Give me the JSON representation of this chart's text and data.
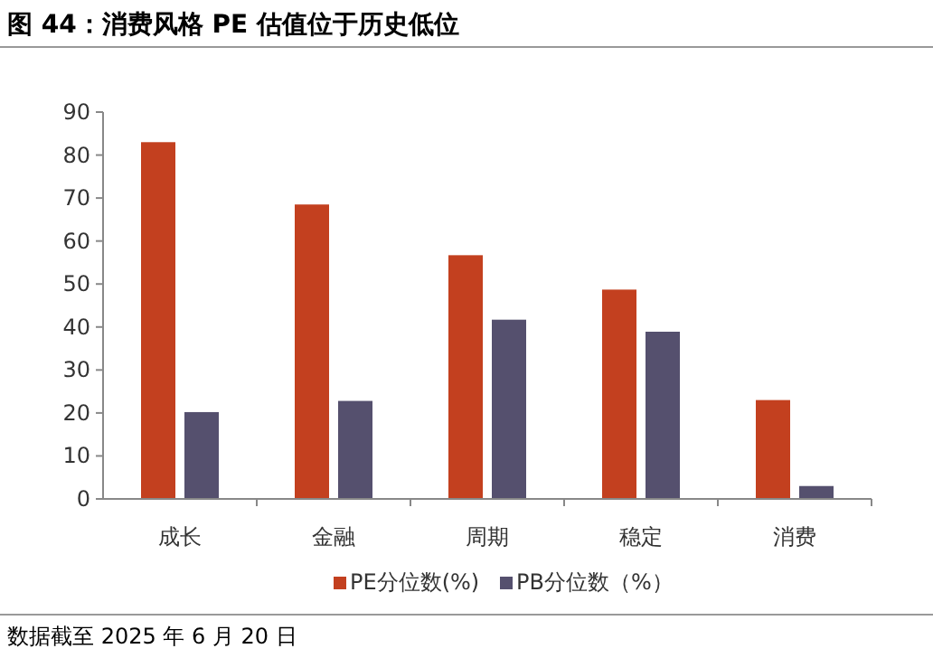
{
  "chart_data": {
    "type": "bar",
    "title": "图 44：消费风格 PE 估值位于历史低位",
    "categories": [
      "成长",
      "金融",
      "周期",
      "稳定",
      "消费"
    ],
    "series": [
      {
        "name": "PE分位数(%)",
        "color": "#c3401f",
        "values": [
          83,
          68.5,
          56.7,
          48.7,
          23
        ]
      },
      {
        "name": "PB分位数（%）",
        "color": "#55506e",
        "values": [
          20.2,
          22.8,
          41.7,
          38.9,
          3
        ]
      }
    ],
    "ylim": [
      0,
      90
    ],
    "yticks": [
      0,
      10,
      20,
      30,
      40,
      50,
      60,
      70,
      80,
      90
    ],
    "grid": false,
    "legend": "bottom",
    "annotations": [
      "数据截至 2025 年 6 月 20 日"
    ]
  }
}
